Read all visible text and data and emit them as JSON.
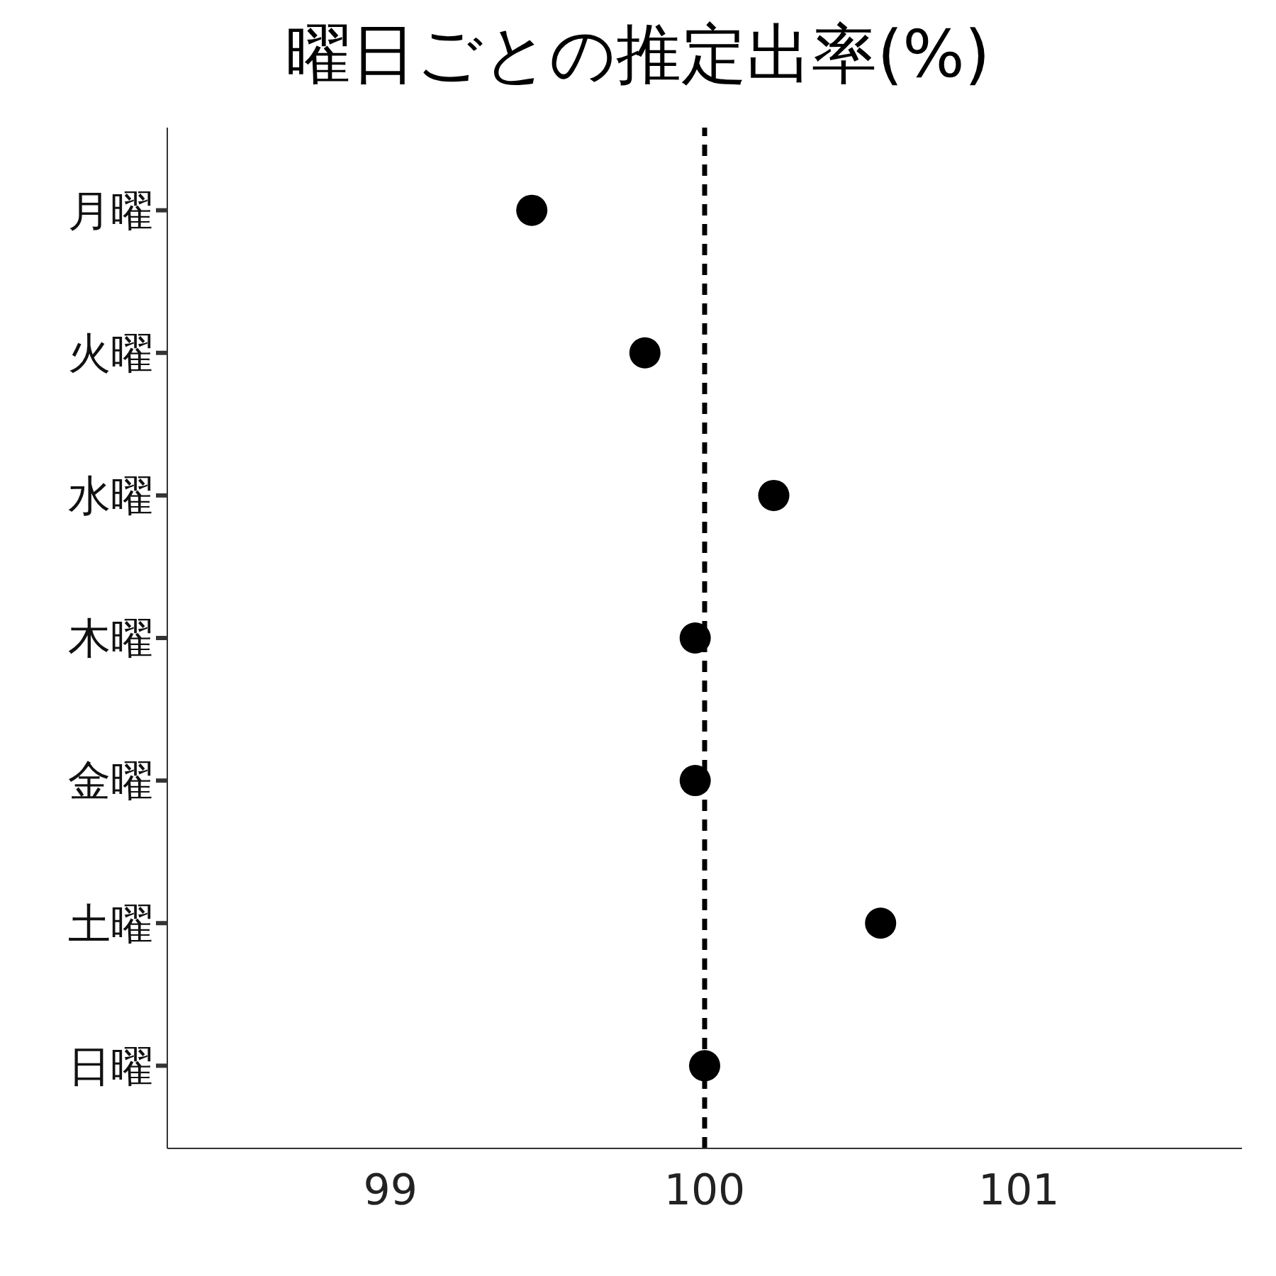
{
  "chart_data": {
    "type": "scatter",
    "title": "曜日ごとの推定出率(%)",
    "orientation": "horizontal",
    "categories": [
      "月曜",
      "火曜",
      "水曜",
      "木曜",
      "金曜",
      "土曜",
      "日曜"
    ],
    "values": [
      99.45,
      99.81,
      100.22,
      99.97,
      99.97,
      100.56,
      100.0
    ],
    "color": "#000000",
    "marker": "circle",
    "grid": false,
    "xlim": [
      98.29,
      101.71
    ],
    "xticks": [
      99,
      100,
      101
    ],
    "ref_lines": [
      {
        "axis": "x",
        "value": 100,
        "color": "#000000",
        "line_style": "dashed"
      }
    ]
  }
}
